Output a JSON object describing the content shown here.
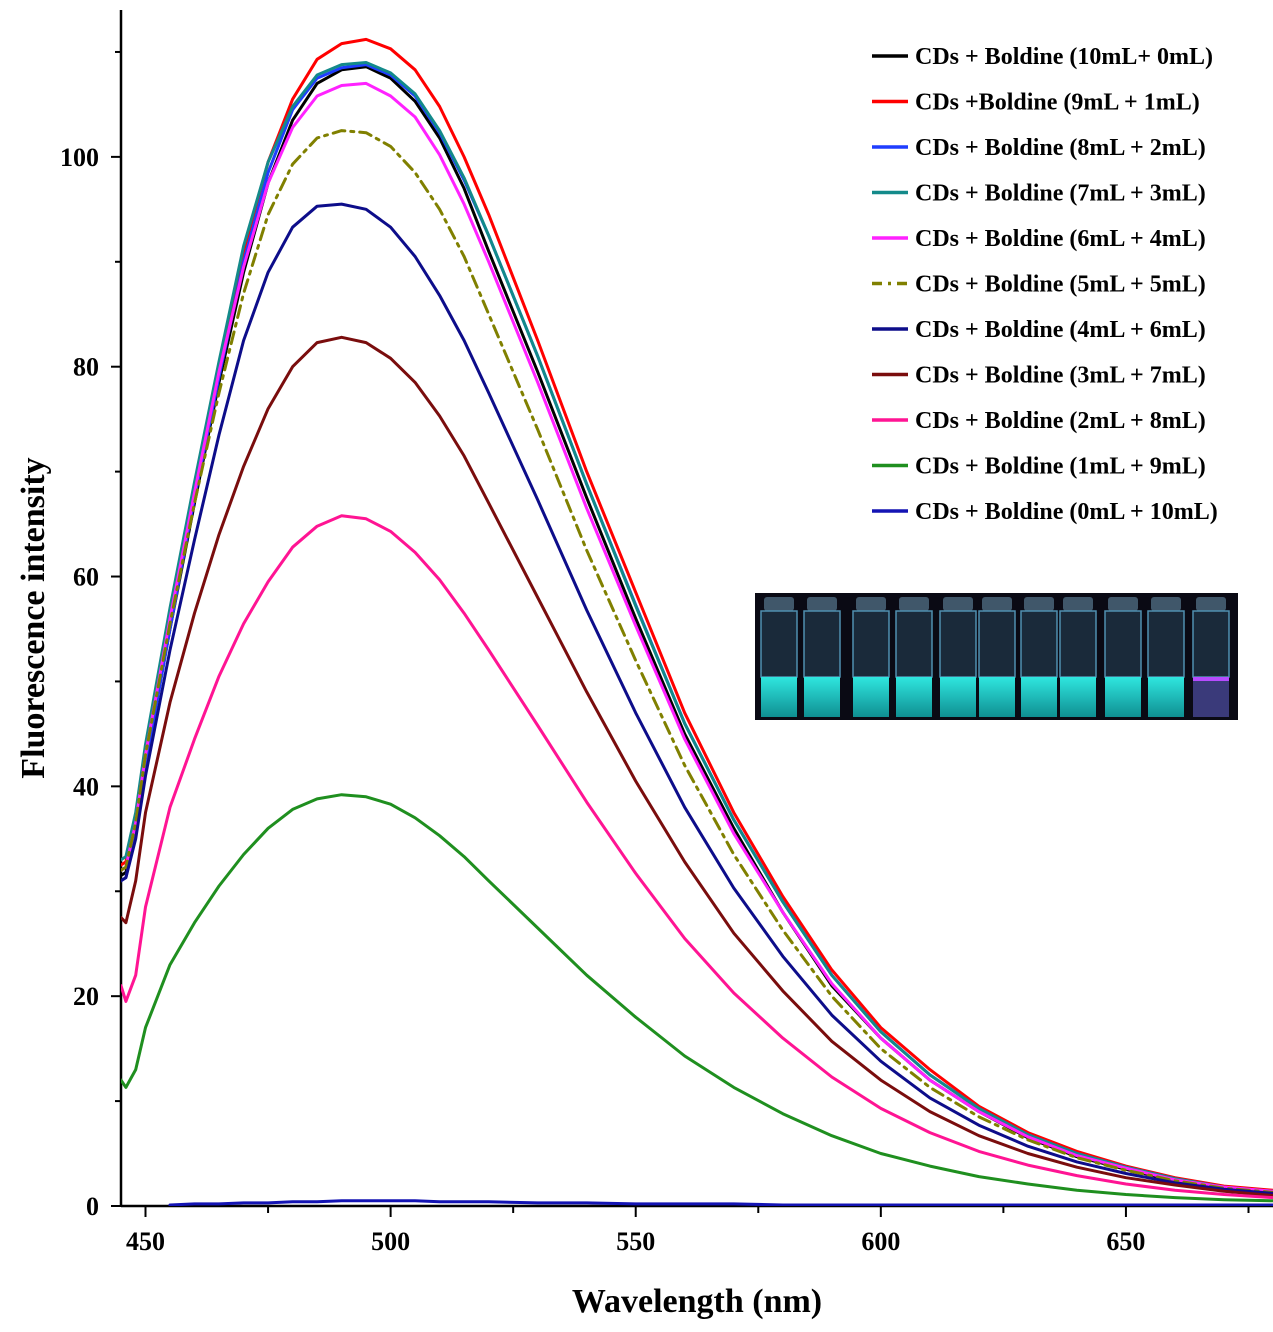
{
  "chart_data": {
    "type": "line",
    "xlabel": "Wavelength (nm)",
    "ylabel": "Fluorescence intensity",
    "xlim": [
      445,
      680
    ],
    "ylim": [
      0,
      114
    ],
    "x_ticks": [
      450,
      500,
      550,
      600,
      650
    ],
    "y_ticks": [
      0,
      20,
      40,
      60,
      80,
      100
    ],
    "x_tick_labels": [
      "450",
      "500",
      "550",
      "600",
      "650"
    ],
    "y_tick_labels": [
      "0",
      "20",
      "40",
      "60",
      "80",
      "100"
    ],
    "x_minor_step": 25,
    "y_minor_step": 10,
    "grid": false,
    "legend_position": "top-right",
    "inset_image": "photo of eleven vials glowing cyan under UV light",
    "x": [
      445,
      446,
      448,
      450,
      455,
      460,
      465,
      470,
      475,
      480,
      485,
      490,
      495,
      500,
      505,
      510,
      515,
      520,
      530,
      540,
      550,
      560,
      570,
      580,
      590,
      600,
      610,
      620,
      630,
      640,
      650,
      660,
      670,
      680
    ],
    "series": [
      {
        "name": "CDs + Boldine (10mL+ 0mL)",
        "color": "#000000",
        "dash": "solid",
        "values": [
          31.5,
          31.8,
          36.0,
          42.3,
          55.0,
          67.0,
          78.5,
          89.0,
          97.5,
          103.5,
          107.0,
          108.3,
          108.6,
          107.5,
          105.3,
          101.8,
          97.0,
          91.0,
          79.5,
          67.5,
          56.0,
          45.0,
          36.0,
          28.0,
          21.0,
          16.0,
          12.0,
          9.0,
          6.5,
          4.7,
          3.5,
          2.4,
          1.7,
          1.3
        ]
      },
      {
        "name": "CDs +Boldine (9mL + 1mL)",
        "color": "#ff0000",
        "dash": "solid",
        "values": [
          32.5,
          32.8,
          37.0,
          43.5,
          56.0,
          68.0,
          79.5,
          91.0,
          99.5,
          105.5,
          109.3,
          110.8,
          111.2,
          110.3,
          108.3,
          104.8,
          100.0,
          94.5,
          82.5,
          70.0,
          58.5,
          47.0,
          37.5,
          29.5,
          22.5,
          17.0,
          13.0,
          9.5,
          7.0,
          5.2,
          3.8,
          2.7,
          1.9,
          1.5
        ]
      },
      {
        "name": "CDs + Boldine (8mL + 2mL)",
        "color": "#1f3dff",
        "dash": "solid",
        "values": [
          31.0,
          31.3,
          35.5,
          42.0,
          55.0,
          67.5,
          79.0,
          90.0,
          98.5,
          104.5,
          107.5,
          108.5,
          108.8,
          107.8,
          105.8,
          102.3,
          97.8,
          92.5,
          81.0,
          68.8,
          57.3,
          46.0,
          36.8,
          29.0,
          22.0,
          16.6,
          12.5,
          9.3,
          6.8,
          5.0,
          3.7,
          2.6,
          1.8,
          1.4
        ]
      },
      {
        "name": "CDs + Boldine (7mL + 3mL)",
        "color": "#138a8a",
        "dash": "solid",
        "values": [
          33.0,
          33.3,
          37.5,
          44.0,
          57.0,
          69.0,
          80.5,
          91.5,
          99.5,
          104.8,
          107.8,
          108.8,
          109.0,
          108.0,
          106.0,
          102.5,
          98.0,
          92.5,
          81.0,
          68.8,
          57.2,
          46.0,
          36.8,
          29.0,
          22.0,
          16.6,
          12.5,
          9.3,
          6.8,
          5.0,
          3.7,
          2.6,
          1.8,
          1.4
        ]
      },
      {
        "name": "CDs + Boldine (6mL + 4mL)",
        "color": "#ff22ff",
        "dash": "solid",
        "values": [
          32.0,
          32.3,
          36.5,
          43.0,
          56.0,
          68.0,
          79.5,
          89.5,
          97.5,
          102.8,
          105.8,
          106.8,
          107.0,
          105.8,
          103.8,
          100.2,
          95.5,
          90.0,
          78.5,
          66.5,
          55.3,
          44.5,
          35.5,
          28.0,
          21.2,
          16.0,
          12.0,
          9.0,
          6.6,
          4.8,
          3.6,
          2.5,
          1.8,
          1.4
        ]
      },
      {
        "name": "CDs + Boldine (5mL + 5mL)",
        "color": "#808000",
        "dash": "dashdot",
        "values": [
          32.0,
          32.3,
          36.5,
          43.0,
          55.5,
          67.0,
          77.5,
          87.0,
          94.5,
          99.3,
          101.8,
          102.5,
          102.3,
          101.0,
          98.5,
          95.0,
          90.5,
          85.0,
          74.0,
          62.5,
          52.0,
          42.0,
          33.5,
          26.3,
          20.0,
          15.0,
          11.3,
          8.5,
          6.3,
          4.6,
          3.4,
          2.4,
          1.7,
          1.3
        ]
      },
      {
        "name": "CDs + Boldine (4mL + 6mL)",
        "color": "#0d0d8a",
        "dash": "solid",
        "values": [
          31.0,
          31.3,
          35.0,
          41.0,
          53.0,
          63.5,
          73.5,
          82.5,
          89.0,
          93.3,
          95.3,
          95.5,
          95.0,
          93.3,
          90.5,
          86.8,
          82.5,
          77.5,
          67.3,
          56.8,
          47.0,
          38.0,
          30.3,
          23.8,
          18.2,
          13.8,
          10.3,
          7.7,
          5.7,
          4.2,
          3.1,
          2.2,
          1.6,
          1.2
        ]
      },
      {
        "name": "CDs + Boldine (3mL + 7mL)",
        "color": "#7a0d0d",
        "dash": "solid",
        "values": [
          27.5,
          27.0,
          31.0,
          37.5,
          48.0,
          56.5,
          64.0,
          70.5,
          76.0,
          80.0,
          82.3,
          82.8,
          82.3,
          80.8,
          78.5,
          75.3,
          71.5,
          67.0,
          58.0,
          49.0,
          40.5,
          32.8,
          26.0,
          20.5,
          15.7,
          12.0,
          9.0,
          6.7,
          5.0,
          3.7,
          2.7,
          2.0,
          1.4,
          1.0
        ]
      },
      {
        "name": "CDs + Boldine (2mL + 8mL)",
        "color": "#ff1493",
        "dash": "solid",
        "values": [
          21.0,
          19.5,
          22.0,
          28.5,
          38.0,
          44.5,
          50.5,
          55.5,
          59.5,
          62.8,
          64.8,
          65.8,
          65.5,
          64.3,
          62.3,
          59.7,
          56.5,
          53.0,
          45.8,
          38.5,
          31.7,
          25.5,
          20.3,
          16.0,
          12.3,
          9.3,
          7.0,
          5.2,
          3.9,
          2.9,
          2.1,
          1.5,
          1.1,
          0.8
        ]
      },
      {
        "name": "CDs + Boldine (1mL + 9mL)",
        "color": "#1f8f1f",
        "dash": "solid",
        "values": [
          12.0,
          11.3,
          13.0,
          17.0,
          23.0,
          27.0,
          30.5,
          33.5,
          36.0,
          37.8,
          38.8,
          39.2,
          39.0,
          38.3,
          37.0,
          35.3,
          33.3,
          31.0,
          26.5,
          22.0,
          18.0,
          14.3,
          11.3,
          8.8,
          6.7,
          5.0,
          3.8,
          2.8,
          2.1,
          1.5,
          1.1,
          0.8,
          0.6,
          0.5
        ]
      },
      {
        "name": "CDs + Boldine (0mL + 10mL)",
        "color": "#1414b4",
        "dash": "solid",
        "values": [
          null,
          null,
          null,
          null,
          0.1,
          0.2,
          0.2,
          0.3,
          0.3,
          0.4,
          0.4,
          0.5,
          0.5,
          0.5,
          0.5,
          0.4,
          0.4,
          0.4,
          0.3,
          0.3,
          0.2,
          0.2,
          0.2,
          0.1,
          0.1,
          0.1,
          0.1,
          0.1,
          0.1,
          0.1,
          0.1,
          0.1,
          0.1,
          0.1
        ]
      }
    ]
  }
}
